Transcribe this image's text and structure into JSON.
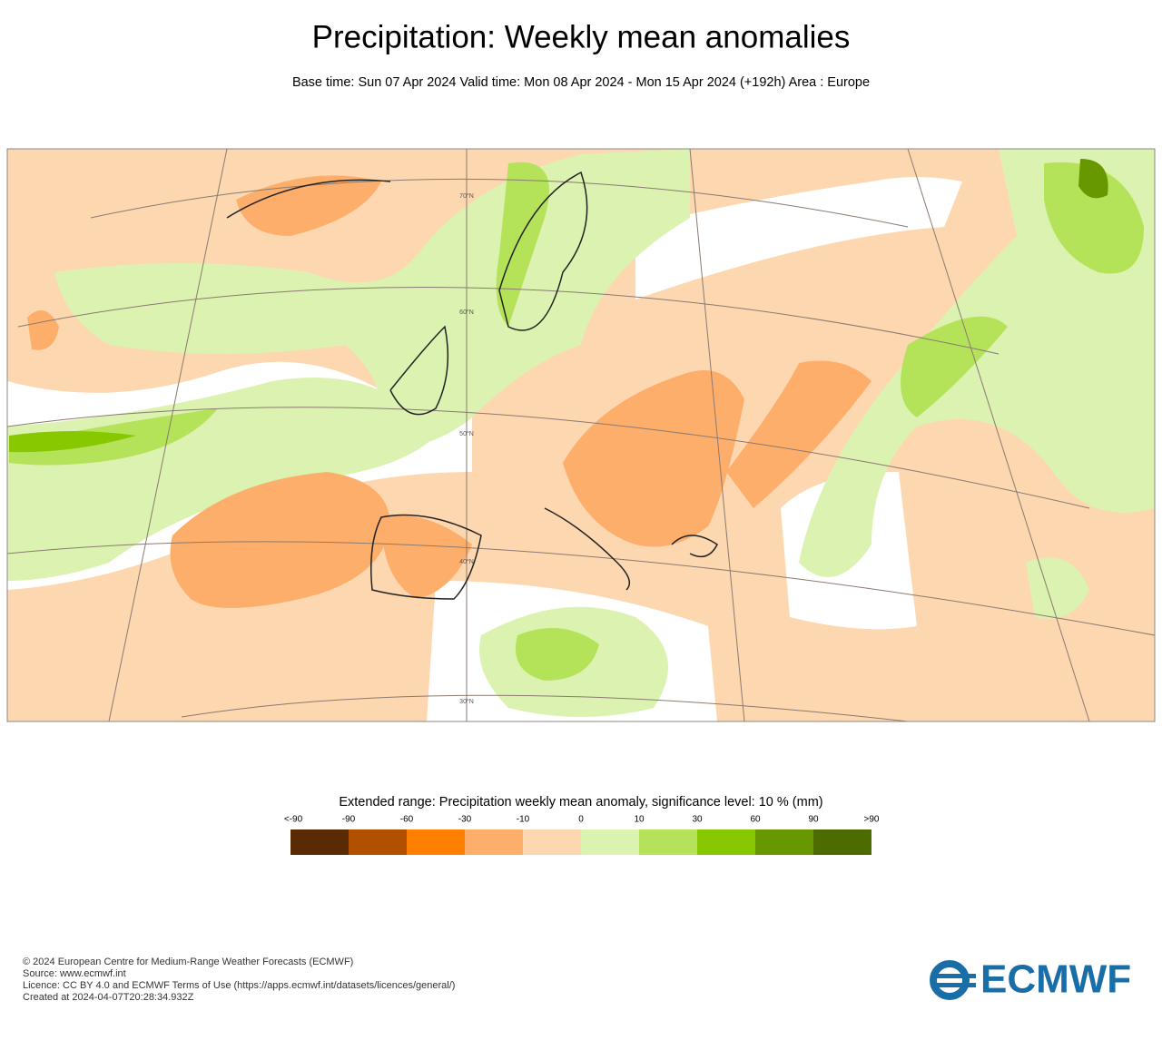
{
  "header": {
    "title": "Precipitation: Weekly mean anomalies",
    "subtitle": "Base time: Sun 07 Apr 2024 Valid time: Mon 08 Apr 2024 - Mon 15 Apr 2024 (+192h) Area : Europe"
  },
  "map": {
    "latitude_labels": [
      "70°N",
      "60°N",
      "50°N",
      "40°N",
      "30°N"
    ]
  },
  "legend": {
    "title": "Extended range: Precipitation weekly mean anomaly, significance level: 10 % (mm)",
    "labels": [
      "<-90",
      "-90",
      "-60",
      "-30",
      "-10",
      "0",
      "10",
      "30",
      "60",
      "90",
      ">90"
    ],
    "colors": [
      "#5a2a02",
      "#b05000",
      "#ff8000",
      "#fdae6b",
      "#fdd7b0",
      "#dcf2b0",
      "#b4e35a",
      "#88c800",
      "#689800",
      "#4e6b00"
    ]
  },
  "footer": {
    "lines": [
      "© 2024 European Centre for Medium-Range Weather Forecasts (ECMWF)",
      "Source: www.ecmwf.int",
      "Licence: CC BY 4.0 and ECMWF Terms of Use (https://apps.ecmwf.int/datasets/licences/general/)",
      "Created at 2024-04-07T20:28:34.932Z"
    ],
    "logo": "ECMWF"
  }
}
